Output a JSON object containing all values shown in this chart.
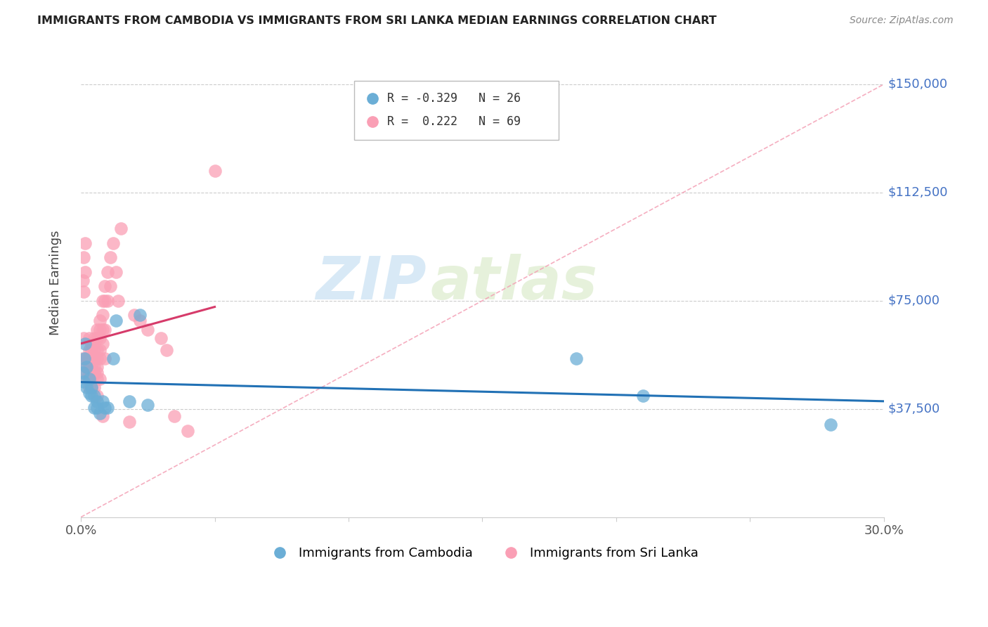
{
  "title": "IMMIGRANTS FROM CAMBODIA VS IMMIGRANTS FROM SRI LANKA MEDIAN EARNINGS CORRELATION CHART",
  "source": "Source: ZipAtlas.com",
  "ylabel": "Median Earnings",
  "xlim": [
    0.0,
    0.3
  ],
  "ylim": [
    0,
    162500
  ],
  "cambodia_R": -0.329,
  "cambodia_N": 26,
  "srilanka_R": 0.222,
  "srilanka_N": 69,
  "cambodia_color": "#6baed6",
  "srilanka_color": "#fa9fb5",
  "cambodia_trend_color": "#2171b5",
  "srilanka_trend_color": "#d63b6a",
  "diagonal_color": "#f4a0b5",
  "watermark_zip": "ZIP",
  "watermark_atlas": "atlas",
  "background_color": "#ffffff",
  "ytick_vals": [
    37500,
    75000,
    112500,
    150000
  ],
  "ytick_labels": [
    "$37,500",
    "$75,000",
    "$112,500",
    "$150,000"
  ],
  "cambodia_x": [
    0.0008,
    0.001,
    0.0012,
    0.0015,
    0.002,
    0.002,
    0.003,
    0.003,
    0.004,
    0.004,
    0.005,
    0.005,
    0.006,
    0.006,
    0.007,
    0.008,
    0.009,
    0.01,
    0.012,
    0.013,
    0.018,
    0.022,
    0.025,
    0.185,
    0.21,
    0.28
  ],
  "cambodia_y": [
    50000,
    47000,
    55000,
    60000,
    45000,
    52000,
    48000,
    43000,
    45000,
    42000,
    42000,
    38000,
    40000,
    38000,
    36000,
    40000,
    38000,
    38000,
    55000,
    68000,
    40000,
    70000,
    39000,
    55000,
    42000,
    32000
  ],
  "srilanka_x": [
    0.0005,
    0.0008,
    0.001,
    0.001,
    0.001,
    0.0015,
    0.0015,
    0.002,
    0.002,
    0.002,
    0.002,
    0.003,
    0.003,
    0.003,
    0.003,
    0.003,
    0.003,
    0.004,
    0.004,
    0.004,
    0.004,
    0.004,
    0.004,
    0.005,
    0.005,
    0.005,
    0.005,
    0.005,
    0.005,
    0.006,
    0.006,
    0.006,
    0.006,
    0.006,
    0.006,
    0.006,
    0.006,
    0.007,
    0.007,
    0.007,
    0.007,
    0.007,
    0.007,
    0.008,
    0.008,
    0.008,
    0.008,
    0.008,
    0.009,
    0.009,
    0.009,
    0.009,
    0.01,
    0.01,
    0.011,
    0.011,
    0.012,
    0.013,
    0.014,
    0.015,
    0.018,
    0.02,
    0.022,
    0.025,
    0.03,
    0.032,
    0.035,
    0.04,
    0.05
  ],
  "srilanka_y": [
    55000,
    82000,
    78000,
    90000,
    62000,
    95000,
    85000,
    50000,
    55000,
    52000,
    48000,
    62000,
    58000,
    55000,
    52000,
    50000,
    45000,
    60000,
    58000,
    55000,
    52000,
    48000,
    45000,
    62000,
    58000,
    55000,
    52000,
    50000,
    45000,
    65000,
    62000,
    58000,
    55000,
    52000,
    50000,
    48000,
    42000,
    68000,
    65000,
    62000,
    58000,
    55000,
    48000,
    75000,
    70000,
    65000,
    60000,
    35000,
    80000,
    75000,
    65000,
    55000,
    85000,
    75000,
    90000,
    80000,
    95000,
    85000,
    75000,
    100000,
    33000,
    70000,
    68000,
    65000,
    62000,
    58000,
    35000,
    30000,
    120000
  ]
}
